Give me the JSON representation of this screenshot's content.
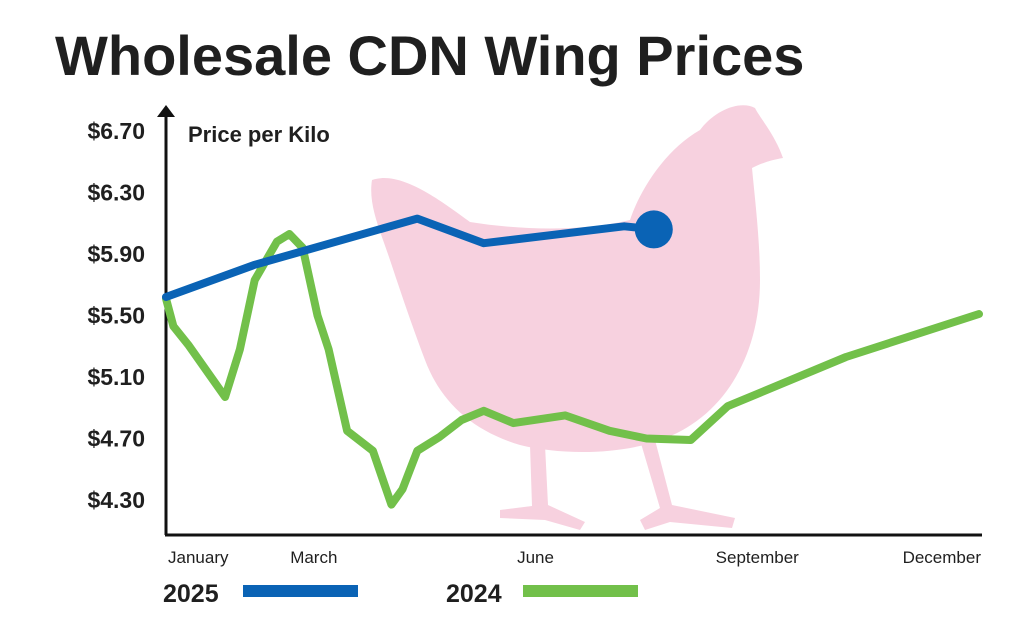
{
  "colors": {
    "series_2025": "#0a63b5",
    "series_2024": "#72c04a",
    "hen_silhouette": "#f7d1df",
    "axis": "#111111",
    "text": "#1f1f1f"
  },
  "chart_data": {
    "type": "line",
    "title": "Wholesale CDN Wing Prices",
    "ylabel": "Price per Kilo",
    "xlabel": "",
    "ylim": [
      4.12,
      6.78
    ],
    "xlim": [
      1,
      12
    ],
    "y_ticks": [
      6.7,
      6.3,
      5.9,
      5.5,
      5.1,
      4.7,
      4.3
    ],
    "y_tick_labels": [
      "$6.70",
      "$6.30",
      "$5.90",
      "$5.50",
      "$5.10",
      "$4.70",
      "$4.30"
    ],
    "x_ticks": [
      1,
      3,
      6,
      9,
      12
    ],
    "x_tick_labels": [
      "January",
      "March",
      "June",
      "September",
      "December"
    ],
    "grid": false,
    "legend_position": "bottom",
    "decoration": "hen-silhouette",
    "series": [
      {
        "name": "2025",
        "color": "#0a63b5",
        "end_marker": true,
        "points": [
          [
            1.0,
            5.62
          ],
          [
            2.2,
            5.83
          ],
          [
            4.4,
            6.13
          ],
          [
            5.3,
            5.97
          ],
          [
            7.2,
            6.08
          ],
          [
            7.6,
            6.06
          ]
        ]
      },
      {
        "name": "2024",
        "color": "#72c04a",
        "end_marker": false,
        "points": [
          [
            1.0,
            5.61
          ],
          [
            1.1,
            5.43
          ],
          [
            1.3,
            5.31
          ],
          [
            1.8,
            4.97
          ],
          [
            2.0,
            5.28
          ],
          [
            2.2,
            5.73
          ],
          [
            2.5,
            5.98
          ],
          [
            2.67,
            6.03
          ],
          [
            2.85,
            5.94
          ],
          [
            3.05,
            5.5
          ],
          [
            3.2,
            5.28
          ],
          [
            3.45,
            4.75
          ],
          [
            3.8,
            4.62
          ],
          [
            4.05,
            4.27
          ],
          [
            4.2,
            4.37
          ],
          [
            4.4,
            4.62
          ],
          [
            4.7,
            4.71
          ],
          [
            5.0,
            4.82
          ],
          [
            5.3,
            4.88
          ],
          [
            5.7,
            4.8
          ],
          [
            6.4,
            4.85
          ],
          [
            7.0,
            4.75
          ],
          [
            7.5,
            4.7
          ],
          [
            8.1,
            4.69
          ],
          [
            8.6,
            4.91
          ],
          [
            9.0,
            4.99
          ],
          [
            10.2,
            5.23
          ],
          [
            12.0,
            5.51
          ]
        ]
      }
    ]
  },
  "legend": [
    {
      "label": "2025",
      "color": "#0a63b5"
    },
    {
      "label": "2024",
      "color": "#72c04a"
    }
  ]
}
